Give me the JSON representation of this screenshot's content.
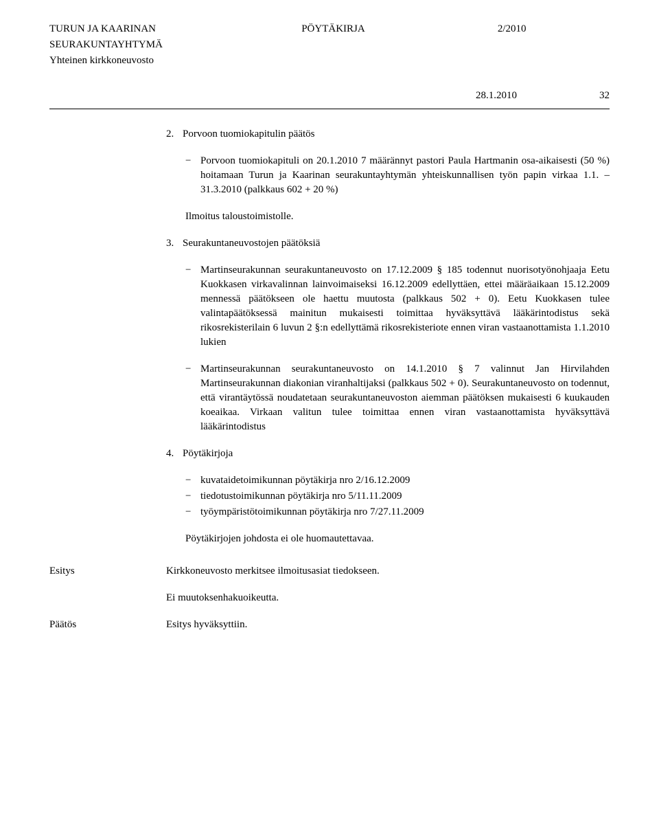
{
  "header": {
    "org1": "TURUN JA KAARINAN",
    "org2": "SEURAKUNTAYHTYMÄ",
    "org3": "Yhteinen kirkkoneuvosto",
    "doc_type": "PÖYTÄKIRJA",
    "doc_num": "2/2010",
    "date": "28.1.2010",
    "page": "32"
  },
  "sec2": {
    "num": "2.",
    "title": "Porvoon tuomiokapitulin päätös",
    "item1": "Porvoon tuomiokapituli on 20.1.2010 7 määrännyt pastori Paula Hartmanin osa-aikaisesti (50 %) hoitamaan Turun ja Kaarinan seura­kuntayhtymän yhteiskunnallisen työn papin virkaa 1.1. – 31.3.2010 (palkkaus 602 + 20 %)",
    "closing": "Ilmoitus taloustoimistolle."
  },
  "sec3": {
    "num": "3.",
    "title": "Seurakuntaneuvostojen päätöksiä",
    "item1": "Martinseurakunnan seurakuntaneuvosto on 17.12.2009 § 185 toden­nut nuorisotyönohjaaja Eetu Kuokkasen virkavalinnan lainvoimai­seksi 16.12.2009 edellyttäen, ettei määräaikaan 15.12.2009 mennessä päätökseen ole haettu muutosta (palkkaus 502 + 0). Eetu Kuokkasen tulee valintapäätöksessä mainitun mukaisesti toimittaa hyväksyttävä lääkärintodistus sekä rikosrekisterilain 6 luvun 2 §:n edellyttämä ri­kosrekisteriote ennen viran vastaanottamista 1.1.2010 lukien",
    "item2": "Martinseurakunnan seurakuntaneuvosto on 14.1.2010 § 7 valinnut Jan Hirvilahden Martinseurakunnan diakonian viranhaltijaksi (palk­kaus 502 + 0). Seurakuntaneuvosto on todennut, että virantäytössä noudatetaan seurakuntaneuvoston aiemman päätöksen mukaisesti 6 kuukauden koeaikaa. Virkaan valitun tulee toimittaa ennen viran vas­taanottamista hyväksyttävä lääkärintodistus"
  },
  "sec4": {
    "num": "4.",
    "title": "Pöytäkirjoja",
    "item1": "kuvataidetoimikunnan pöytäkirja nro 2/16.12.2009",
    "item2": "tiedotustoimikunnan pöytäkirja nro 5/11.11.2009",
    "item3": "työympäristötoimikunnan pöytäkirja nro 7/27.11.2009",
    "closing": "Pöytäkirjojen johdosta ei ole huomautettavaa."
  },
  "esitys": {
    "label": "Esitys",
    "line1": "Kirkkoneuvosto merkitsee ilmoitusasiat tiedokseen.",
    "line2": "Ei muutoksenhakuoikeutta."
  },
  "paatos": {
    "label": "Päätös",
    "value": "Esitys hyväksyttiin."
  },
  "style": {
    "font_family": "Times New Roman",
    "font_size_pt": 12,
    "text_color": "#000000",
    "background_color": "#ffffff",
    "rule_color": "#000000"
  }
}
